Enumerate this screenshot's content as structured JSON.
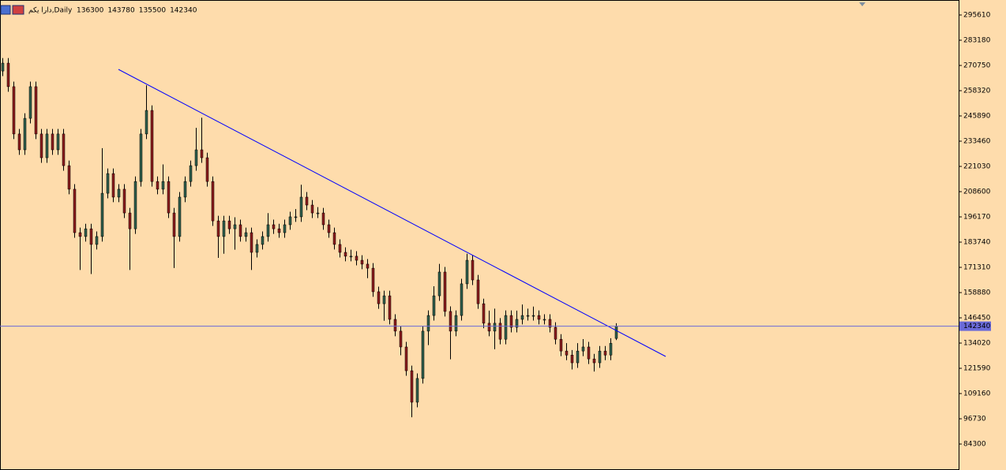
{
  "chart_data": {
    "type": "candlestick",
    "symbol": "دارا یکم,Daily",
    "header_ohlc": [
      136300,
      143780,
      135500,
      142340
    ],
    "bull_color": "#2f5e4b",
    "bear_color": "#8b1c1c",
    "wick_color": "#000000",
    "background": "#fedcac",
    "ylim": [
      71890,
      302990
    ],
    "yticks": [
      295610,
      283180,
      270750,
      258320,
      245890,
      233460,
      221030,
      208600,
      196170,
      183740,
      171310,
      158880,
      146450,
      134020,
      121590,
      109160,
      96730,
      84300
    ],
    "last_price": 142340,
    "last_price_color": "#6a6ad8",
    "trendline": {
      "x": [
        21,
        120
      ],
      "values": [
        268810,
        127430
      ],
      "color": "#0000ff"
    },
    "ohlc": [
      [
        268000,
        274400,
        265500,
        271900
      ],
      [
        271900,
        274400,
        257800,
        260300
      ],
      [
        260300,
        262800,
        234500,
        237000
      ],
      [
        237000,
        239500,
        226700,
        229200
      ],
      [
        229200,
        247200,
        226700,
        244700
      ],
      [
        244700,
        262800,
        242200,
        260300
      ],
      [
        260300,
        262800,
        234500,
        237000
      ],
      [
        237000,
        239500,
        222800,
        225300
      ],
      [
        225300,
        239500,
        222800,
        237000
      ],
      [
        237000,
        239500,
        226700,
        229200
      ],
      [
        229200,
        239500,
        226700,
        237000
      ],
      [
        237000,
        239500,
        218900,
        221400
      ],
      [
        221400,
        223900,
        207300,
        209800
      ],
      [
        209800,
        212300,
        185900,
        188400
      ],
      [
        188400,
        190900,
        170000,
        186500
      ],
      [
        186500,
        192800,
        184000,
        190300
      ],
      [
        190300,
        192800,
        168000,
        182600
      ],
      [
        182600,
        189000,
        180100,
        186500
      ],
      [
        186500,
        230000,
        184000,
        207800
      ],
      [
        207800,
        220000,
        205300,
        217500
      ],
      [
        217500,
        220000,
        203400,
        205900
      ],
      [
        205900,
        212300,
        203400,
        209800
      ],
      [
        209800,
        212300,
        195600,
        198100
      ],
      [
        198100,
        200600,
        170000,
        190300
      ],
      [
        190300,
        216100,
        187800,
        213600
      ],
      [
        213600,
        239500,
        211100,
        237000
      ],
      [
        237000,
        261000,
        234500,
        248600
      ],
      [
        248600,
        251100,
        211100,
        213600
      ],
      [
        213600,
        216100,
        207300,
        209800
      ],
      [
        209800,
        222000,
        207300,
        213600
      ],
      [
        213600,
        216100,
        195600,
        198100
      ],
      [
        198100,
        200600,
        171000,
        186500
      ],
      [
        186500,
        208400,
        184000,
        205900
      ],
      [
        205900,
        216100,
        203400,
        213600
      ],
      [
        213600,
        223900,
        211100,
        221400
      ],
      [
        221400,
        240000,
        218900,
        229200
      ],
      [
        229200,
        245000,
        222800,
        225300
      ],
      [
        225300,
        227800,
        211100,
        213600
      ],
      [
        213600,
        216100,
        191700,
        194200
      ],
      [
        194200,
        196700,
        176000,
        186500
      ],
      [
        186500,
        196700,
        178000,
        194200
      ],
      [
        194200,
        196700,
        187800,
        190300
      ],
      [
        190300,
        196000,
        180000,
        192300
      ],
      [
        192300,
        194800,
        184000,
        186500
      ],
      [
        186500,
        190900,
        184000,
        188400
      ],
      [
        188400,
        190900,
        170000,
        178700
      ],
      [
        178700,
        185100,
        176200,
        182600
      ],
      [
        182600,
        189000,
        180100,
        186500
      ],
      [
        186500,
        198000,
        184000,
        192300
      ],
      [
        192300,
        194800,
        187800,
        190300
      ],
      [
        190300,
        192800,
        185900,
        188400
      ],
      [
        188400,
        194800,
        185900,
        192300
      ],
      [
        192300,
        198700,
        189800,
        196200
      ],
      [
        196200,
        200000,
        193700,
        196200
      ],
      [
        196200,
        212000,
        193700,
        205900
      ],
      [
        205900,
        208400,
        199500,
        202000
      ],
      [
        202000,
        204500,
        195600,
        198100
      ],
      [
        198100,
        201000,
        195600,
        198100
      ],
      [
        198100,
        200600,
        189800,
        192300
      ],
      [
        192300,
        194800,
        185900,
        188400
      ],
      [
        188400,
        190900,
        180100,
        182600
      ],
      [
        182600,
        185100,
        176200,
        178700
      ],
      [
        178700,
        181200,
        174300,
        176800
      ],
      [
        176800,
        180000,
        174300,
        176800
      ],
      [
        176800,
        179300,
        172300,
        174800
      ],
      [
        174800,
        177300,
        170400,
        172900
      ],
      [
        172900,
        175400,
        166000,
        170900
      ],
      [
        170900,
        173400,
        156800,
        159300
      ],
      [
        159300,
        161800,
        150900,
        153400
      ],
      [
        153400,
        159800,
        145000,
        157300
      ],
      [
        157300,
        159800,
        143200,
        145700
      ],
      [
        145700,
        148200,
        137400,
        139900
      ],
      [
        139900,
        142400,
        128000,
        132100
      ],
      [
        132100,
        134600,
        117900,
        120400
      ],
      [
        120400,
        122900,
        97500,
        104900
      ],
      [
        104900,
        119100,
        102400,
        116600
      ],
      [
        116600,
        142400,
        114100,
        139900
      ],
      [
        139900,
        150100,
        133000,
        147600
      ],
      [
        147600,
        162000,
        145100,
        157300
      ],
      [
        157300,
        173000,
        154800,
        169000
      ],
      [
        169000,
        171500,
        147100,
        149600
      ],
      [
        149600,
        152100,
        126000,
        139900
      ],
      [
        139900,
        150100,
        137400,
        147600
      ],
      [
        147600,
        165700,
        145100,
        163200
      ],
      [
        163200,
        178000,
        160700,
        174800
      ],
      [
        174800,
        177300,
        162600,
        165100
      ],
      [
        165100,
        167600,
        150900,
        153400
      ],
      [
        153400,
        155900,
        141300,
        143800
      ],
      [
        143800,
        150000,
        137400,
        139900
      ],
      [
        139900,
        151000,
        131000,
        143800
      ],
      [
        143800,
        146300,
        133400,
        135900
      ],
      [
        135900,
        150100,
        133400,
        147600
      ],
      [
        147600,
        150100,
        139300,
        141800
      ],
      [
        141800,
        150000,
        139300,
        145700
      ],
      [
        145700,
        153000,
        143200,
        147600
      ],
      [
        147600,
        151000,
        145100,
        147600
      ],
      [
        147600,
        152000,
        145100,
        147600
      ],
      [
        147600,
        150100,
        143200,
        145700
      ],
      [
        145700,
        148200,
        143200,
        145700
      ],
      [
        145700,
        148200,
        139300,
        141800
      ],
      [
        141800,
        144300,
        133400,
        135900
      ],
      [
        135900,
        138400,
        127600,
        130100
      ],
      [
        130100,
        134000,
        125600,
        128100
      ],
      [
        128100,
        130600,
        121000,
        124300
      ],
      [
        124300,
        134000,
        121800,
        130100
      ],
      [
        130100,
        136000,
        127600,
        132100
      ],
      [
        132100,
        134600,
        123700,
        126200
      ],
      [
        126200,
        128700,
        120000,
        124300
      ],
      [
        124300,
        132600,
        121800,
        130100
      ],
      [
        130100,
        132600,
        125600,
        128100
      ],
      [
        128100,
        136400,
        125600,
        133900
      ],
      [
        136300,
        143780,
        135500,
        142340
      ]
    ]
  }
}
